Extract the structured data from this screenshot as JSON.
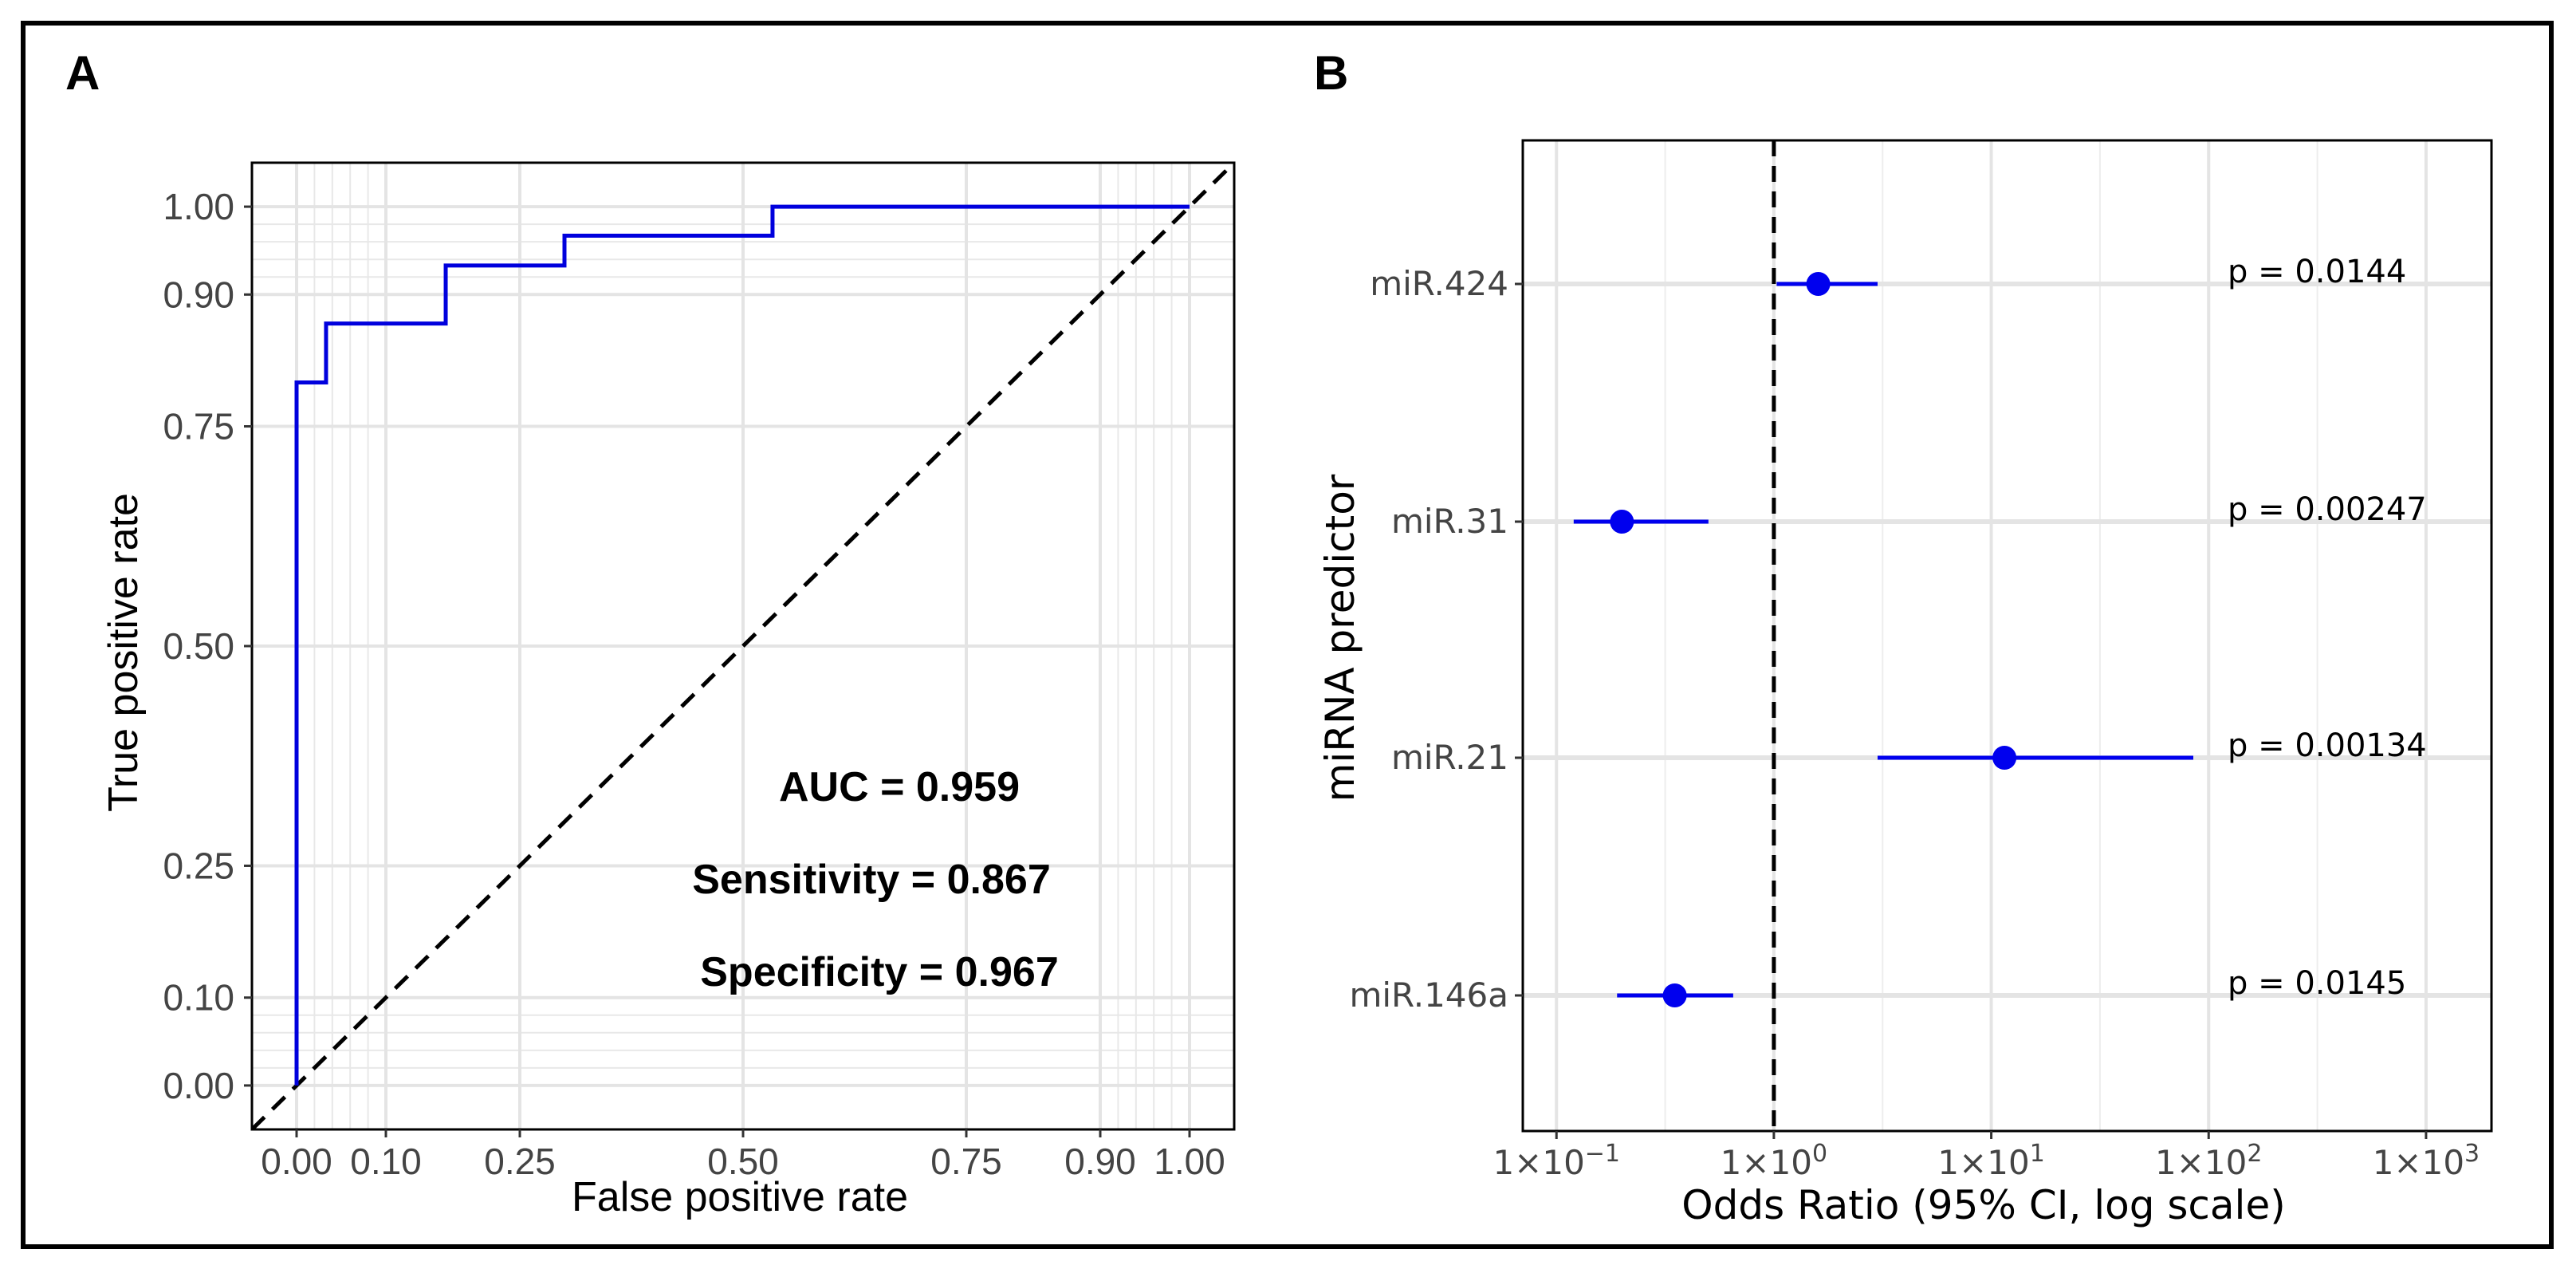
{
  "chart_data": [
    {
      "panel": "A",
      "type": "line",
      "xlabel": "False positive rate",
      "ylabel": "True positive rate",
      "xlim": [
        -0.05,
        1.05
      ],
      "ylim": [
        -0.05,
        1.05
      ],
      "x_ticks": [
        0.0,
        0.1,
        0.25,
        0.5,
        0.75,
        0.9,
        1.0
      ],
      "x_tick_labels": [
        "0.00",
        "0.10",
        "0.25",
        "0.50",
        "0.75",
        "0.90",
        "1.00"
      ],
      "y_ticks": [
        0.0,
        0.1,
        0.25,
        0.5,
        0.75,
        0.9,
        1.0
      ],
      "y_tick_labels": [
        "0.00",
        "0.10",
        "0.25",
        "0.50",
        "0.75",
        "0.90",
        "1.00"
      ],
      "grid": true,
      "series": [
        {
          "style": "step",
          "color": "#0000dd",
          "x": [
            0.0,
            0.0,
            0.033,
            0.033,
            0.167,
            0.167,
            0.3,
            0.3,
            0.533,
            0.533,
            1.0
          ],
          "y": [
            0.0,
            0.8,
            0.8,
            0.867,
            0.867,
            0.933,
            0.933,
            0.967,
            0.967,
            1.0,
            1.0
          ]
        },
        {
          "style": "dashed",
          "color": "#000000",
          "x": [
            -0.05,
            1.05
          ],
          "y": [
            -0.05,
            1.05
          ]
        }
      ],
      "annotations": [
        "AUC = 0.959",
        "Sensitivity = 0.867",
        "Specificity = 0.967"
      ]
    },
    {
      "panel": "B",
      "type": "scatter",
      "subtype": "forest",
      "xlabel": "Odds Ratio (95% CI, log scale)",
      "ylabel": "miRNA predictor",
      "x_scale": "log10",
      "xlim": [
        0.07,
        2000
      ],
      "x_ticks": [
        0.1,
        1,
        10,
        100,
        1000
      ],
      "x_tick_labels": [
        {
          "base": "1×10",
          "exp": "−1"
        },
        {
          "base": "1×10",
          "exp": "0"
        },
        {
          "base": "1×10",
          "exp": "1"
        },
        {
          "base": "1×10",
          "exp": "2"
        },
        {
          "base": "1×10",
          "exp": "3"
        }
      ],
      "reference_line": 1,
      "grid": true,
      "point_color": "#0000ee",
      "rows": [
        {
          "label": "miR.424",
          "or": 1.6,
          "lo": 1.03,
          "hi": 3.0,
          "p": "p = 0.0144"
        },
        {
          "label": "miR.31",
          "or": 0.2,
          "lo": 0.12,
          "hi": 0.5,
          "p": "p = 0.00247"
        },
        {
          "label": "miR.21",
          "or": 11.5,
          "lo": 3.0,
          "hi": 85,
          "p": "p = 0.00134"
        },
        {
          "label": "miR.146a",
          "or": 0.35,
          "lo": 0.19,
          "hi": 0.65,
          "p": "p = 0.0145"
        }
      ]
    }
  ],
  "labels": {
    "panel_a": "A",
    "panel_b": "B"
  }
}
